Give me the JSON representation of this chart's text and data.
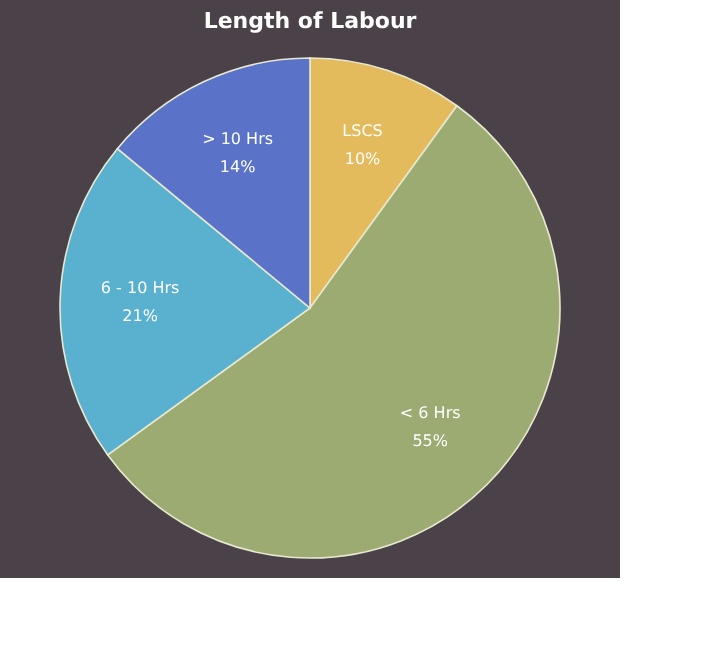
{
  "chart_data": {
    "type": "pie",
    "title": "Length of Labour",
    "categories": [
      "LSCS",
      "< 6 Hrs",
      "6 - 10 Hrs",
      "> 10 Hrs"
    ],
    "values": [
      10,
      55,
      21,
      14
    ],
    "value_labels": [
      "10%",
      "55%",
      "21%",
      "14%"
    ],
    "colors": [
      "#e3bb5d",
      "#9bab72",
      "#5ab0cf",
      "#5b72c9"
    ],
    "legend": false
  }
}
